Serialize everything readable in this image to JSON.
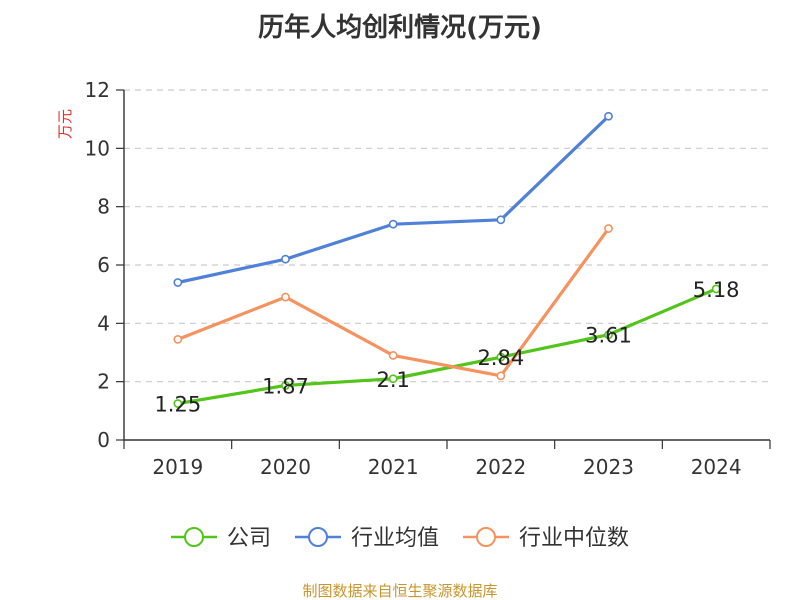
{
  "chart_data": {
    "type": "line",
    "title": "历年人均创利情况(万元)",
    "ylabel": "万元",
    "categories": [
      "2019",
      "2020",
      "2021",
      "2022",
      "2023",
      "2024"
    ],
    "ylim": [
      0,
      12
    ],
    "yticks": [
      0,
      2,
      4,
      6,
      8,
      10,
      12
    ],
    "grid": true,
    "legend_position": "bottom",
    "series": [
      {
        "name": "公司",
        "color": "#52c41a",
        "values": [
          1.25,
          1.87,
          2.1,
          2.84,
          3.61,
          5.18
        ],
        "labels": [
          "1.25",
          "1.87",
          "2.1",
          "2.84",
          "3.61",
          "5.18"
        ]
      },
      {
        "name": "行业均值",
        "color": "#4f81d9",
        "values": [
          5.4,
          6.2,
          7.4,
          7.55,
          11.1,
          null
        ]
      },
      {
        "name": "行业中位数",
        "color": "#f5925e",
        "values": [
          3.45,
          4.9,
          2.9,
          2.2,
          7.25,
          null
        ]
      }
    ],
    "source": "制图数据来自恒生聚源数据库",
    "colors": {
      "title": "#333333",
      "ylabel": "#e0302a",
      "axis": "#333333",
      "grid": "#cccccc",
      "source": "#c8962d"
    }
  }
}
